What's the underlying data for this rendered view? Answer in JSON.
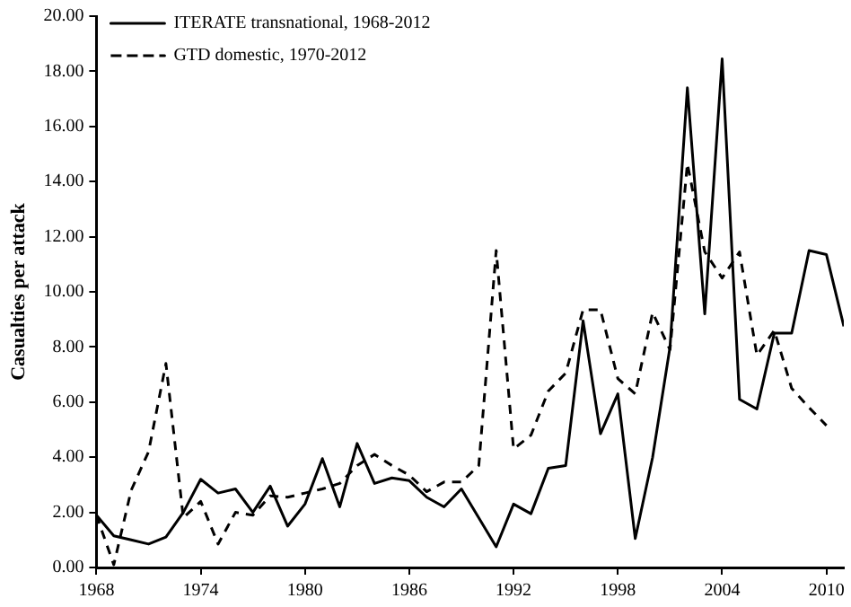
{
  "chart_data": {
    "type": "line",
    "ylabel": "Casualties per attack",
    "x": [
      1968,
      1969,
      1970,
      1971,
      1972,
      1973,
      1974,
      1975,
      1976,
      1977,
      1978,
      1979,
      1980,
      1981,
      1982,
      1983,
      1984,
      1985,
      1986,
      1987,
      1988,
      1989,
      1990,
      1991,
      1992,
      1993,
      1994,
      1995,
      1996,
      1997,
      1998,
      1999,
      2000,
      2001,
      2002,
      2003,
      2004,
      2005,
      2006,
      2007,
      2008,
      2009,
      2010,
      2011
    ],
    "series": [
      {
        "name": "ITERATE transnational, 1968-2012",
        "color": "#000000",
        "line_style": "solid",
        "values": [
          1.9,
          1.15,
          1.0,
          0.85,
          1.1,
          2.0,
          3.2,
          2.7,
          2.85,
          2.0,
          2.95,
          1.5,
          2.3,
          3.95,
          2.2,
          4.5,
          3.05,
          3.25,
          3.15,
          2.55,
          2.2,
          2.85,
          1.8,
          0.75,
          2.3,
          1.95,
          3.6,
          3.7,
          8.95,
          4.85,
          6.3,
          1.05,
          4.0,
          8.0,
          17.4,
          9.2,
          18.45,
          6.1,
          5.75,
          8.5,
          8.5,
          11.5,
          11.35,
          8.75
        ]
      },
      {
        "name": "GTD domestic, 1970-2012",
        "color": "#000000",
        "line_style": "dashed",
        "values": [
          1.9,
          0.1,
          2.8,
          4.2,
          7.4,
          1.8,
          2.4,
          0.85,
          2.0,
          1.9,
          2.6,
          2.55,
          2.7,
          2.85,
          3.05,
          3.7,
          4.1,
          3.7,
          3.35,
          2.75,
          3.1,
          3.1,
          3.7,
          11.5,
          4.3,
          4.8,
          6.4,
          7.05,
          9.35,
          9.35,
          6.85,
          6.3,
          9.25,
          7.9,
          14.65,
          11.45,
          10.5,
          11.45,
          7.7,
          8.6,
          6.5,
          5.8,
          5.15,
          null
        ]
      }
    ],
    "xlim": [
      1968,
      2011
    ],
    "xticks": [
      1968,
      1974,
      1980,
      1986,
      1992,
      1998,
      2004,
      2010
    ],
    "ylim": [
      0,
      20
    ],
    "yticks": [
      {
        "value": 0,
        "label": "0.00"
      },
      {
        "value": 2,
        "label": "2.00"
      },
      {
        "value": 4,
        "label": "4.00"
      },
      {
        "value": 6,
        "label": "6.00"
      },
      {
        "value": 8,
        "label": "8.00"
      },
      {
        "value": 10,
        "label": "10.00"
      },
      {
        "value": 12,
        "label": "12.00"
      },
      {
        "value": 14,
        "label": "14.00"
      },
      {
        "value": 16,
        "label": "16.00"
      },
      {
        "value": 18,
        "label": "18.00"
      },
      {
        "value": 20,
        "label": "20.00"
      }
    ],
    "grid": false,
    "legend": "top left",
    "marker": "none"
  }
}
